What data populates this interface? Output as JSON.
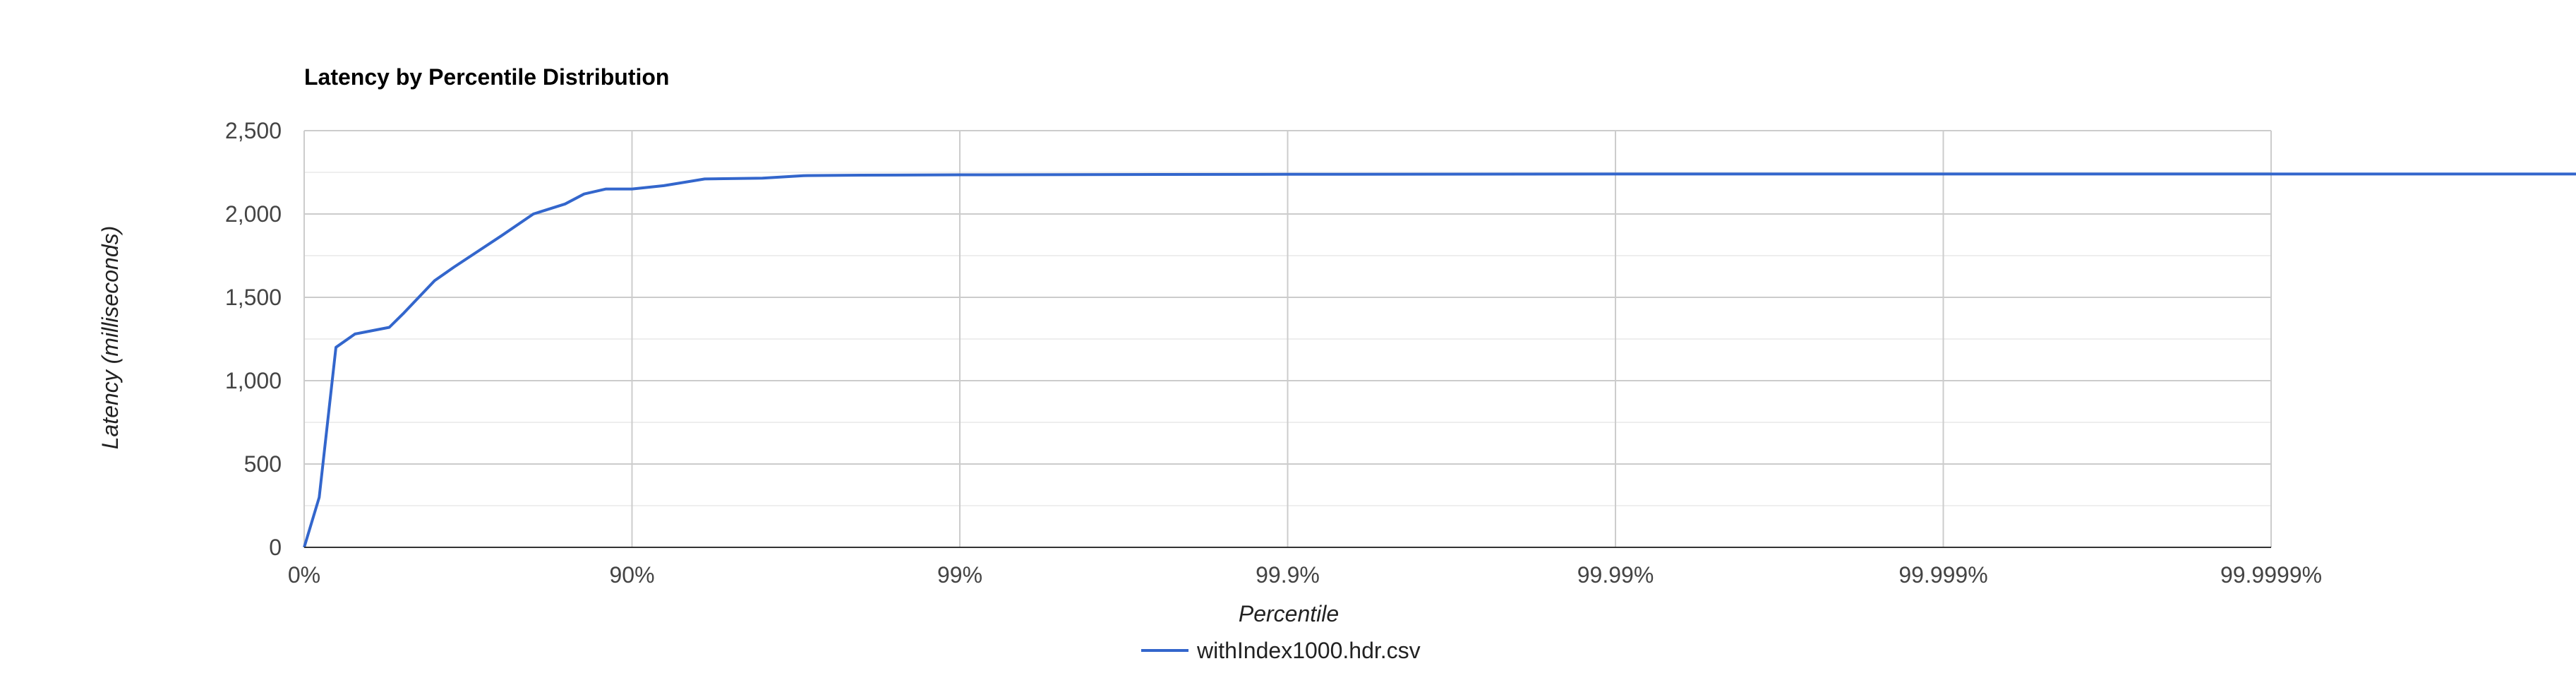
{
  "chart_data": {
    "type": "line",
    "title": "Latency by Percentile Distribution",
    "xlabel": "Percentile",
    "ylabel": "Latency (milliseconds)",
    "x_scale": "log-percentile",
    "x_ticks": [
      {
        "value": 0,
        "label": "0%"
      },
      {
        "value": 90,
        "label": "90%"
      },
      {
        "value": 99,
        "label": "99%"
      },
      {
        "value": 99.9,
        "label": "99.9%"
      },
      {
        "value": 99.99,
        "label": "99.99%"
      },
      {
        "value": 99.999,
        "label": "99.999%"
      },
      {
        "value": 99.9999,
        "label": "99.9999%"
      }
    ],
    "y_ticks": [
      {
        "value": 0,
        "label": "0"
      },
      {
        "value": 500,
        "label": "500"
      },
      {
        "value": 1000,
        "label": "1,000"
      },
      {
        "value": 1500,
        "label": "1,500"
      },
      {
        "value": 2000,
        "label": "2,000"
      },
      {
        "value": 2500,
        "label": "2,500"
      }
    ],
    "ylim": [
      0,
      2500
    ],
    "grid": true,
    "legend_position": "bottom",
    "series": [
      {
        "name": "withIndex1000.hdr.csv",
        "color": "#3366cc",
        "points": [
          {
            "x": 0,
            "y": 0
          },
          {
            "x": 10,
            "y": 300
          },
          {
            "x": 20,
            "y": 1200
          },
          {
            "x": 30,
            "y": 1280
          },
          {
            "x": 45,
            "y": 1320
          },
          {
            "x": 50,
            "y": 1400
          },
          {
            "x": 60,
            "y": 1600
          },
          {
            "x": 65,
            "y": 1680
          },
          {
            "x": 75,
            "y": 1870
          },
          {
            "x": 80,
            "y": 2000
          },
          {
            "x": 84,
            "y": 2060
          },
          {
            "x": 86,
            "y": 2120
          },
          {
            "x": 88,
            "y": 2150
          },
          {
            "x": 90,
            "y": 2150
          },
          {
            "x": 92,
            "y": 2170
          },
          {
            "x": 94,
            "y": 2210
          },
          {
            "x": 96,
            "y": 2215
          },
          {
            "x": 97,
            "y": 2230
          },
          {
            "x": 98,
            "y": 2233
          },
          {
            "x": 99,
            "y": 2235
          },
          {
            "x": 99.9,
            "y": 2238
          },
          {
            "x": 99.99,
            "y": 2240
          },
          {
            "x": 99.999,
            "y": 2240
          },
          {
            "x": 99.9999,
            "y": 2240
          },
          {
            "x": 99.99999,
            "y": 2240
          }
        ]
      }
    ]
  }
}
